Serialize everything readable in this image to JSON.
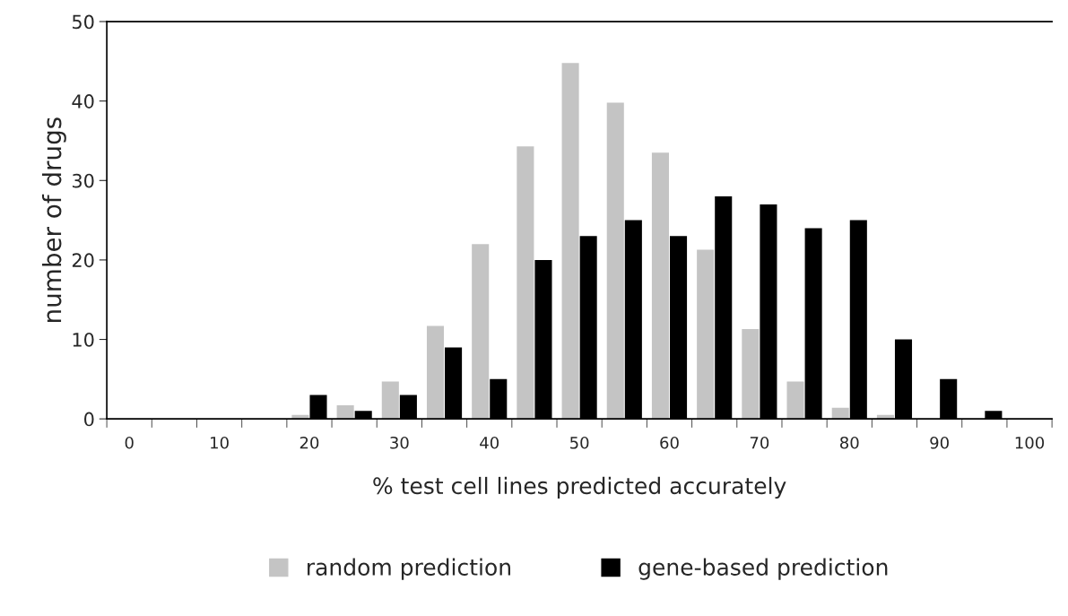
{
  "chart_data": {
    "type": "bar",
    "xlabel": "% test cell lines predicted accurately",
    "ylabel": "number of drugs",
    "categories": [
      "0",
      null,
      "10",
      null,
      "20",
      null,
      "30",
      null,
      "40",
      null,
      "50",
      null,
      "60",
      null,
      "70",
      null,
      "80",
      null,
      "90",
      null,
      "100"
    ],
    "series": [
      {
        "name": "random prediction",
        "color": "#c4c4c4",
        "values": [
          0,
          0,
          0,
          0,
          0.5,
          1.7,
          4.7,
          11.7,
          22,
          34.3,
          44.8,
          39.8,
          33.5,
          21.3,
          11.3,
          4.7,
          1.4,
          0.5,
          0,
          0,
          0
        ]
      },
      {
        "name": "gene-based prediction",
        "color": "#000000",
        "values": [
          0,
          0,
          0,
          0,
          3,
          1,
          3,
          9,
          5,
          20,
          23,
          25,
          23,
          28,
          27,
          24,
          25,
          10,
          5,
          1,
          0
        ]
      }
    ],
    "ylim": [
      0,
      50
    ],
    "yticks": [
      0,
      10,
      20,
      30,
      40,
      50
    ],
    "grid": false,
    "legend": "bottom"
  }
}
